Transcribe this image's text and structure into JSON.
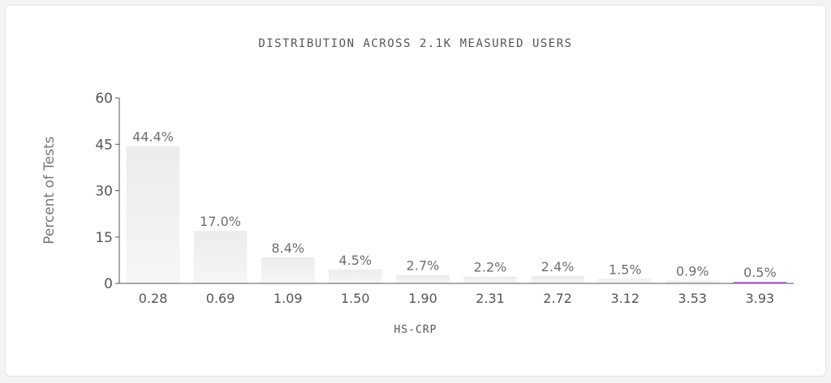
{
  "chart_data": {
    "type": "bar",
    "title": "DISTRIBUTION ACROSS 2.1K MEASURED USERS",
    "xlabel": "HS-CRP",
    "ylabel": "Percent of Tests",
    "categories": [
      "0.28",
      "0.69",
      "1.09",
      "1.50",
      "1.90",
      "2.31",
      "2.72",
      "3.12",
      "3.53",
      "3.93"
    ],
    "values": [
      44.4,
      17.0,
      8.4,
      4.5,
      2.7,
      2.2,
      2.4,
      1.5,
      0.9,
      0.5
    ],
    "value_labels": [
      "44.4%",
      "17.0%",
      "8.4%",
      "4.5%",
      "2.7%",
      "2.2%",
      "2.4%",
      "1.5%",
      "0.9%",
      "0.5%"
    ],
    "highlighted_index": 9,
    "ylim": [
      0,
      60
    ],
    "yticks": [
      0,
      15,
      30,
      45,
      60
    ],
    "grid": false,
    "legend": "none"
  },
  "colors": {
    "bar_fill": "#efefef",
    "highlight": "#c77de8",
    "axis": "#555555",
    "text": "#555555",
    "value_label": "#6e6e6e"
  }
}
